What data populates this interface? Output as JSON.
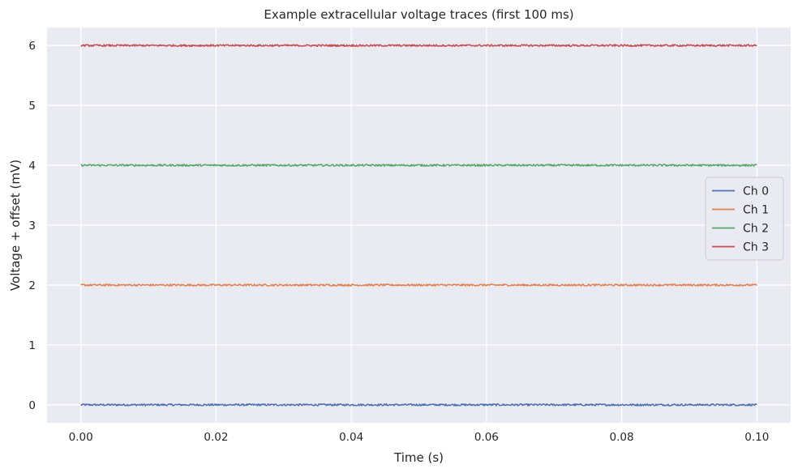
{
  "chart_data": {
    "type": "line",
    "title": "Example extracellular voltage traces (first 100 ms)",
    "xlabel": "Time (s)",
    "ylabel": "Voltage + offset (mV)",
    "xlim": [
      -0.005,
      0.105
    ],
    "ylim": [
      -0.3,
      6.3
    ],
    "xticks": [
      0.0,
      0.02,
      0.04,
      0.06,
      0.08,
      0.1
    ],
    "xtick_labels": [
      "0.00",
      "0.02",
      "0.04",
      "0.06",
      "0.08",
      "0.10"
    ],
    "yticks": [
      0,
      1,
      2,
      3,
      4,
      5,
      6
    ],
    "ytick_labels": [
      "0",
      "1",
      "2",
      "3",
      "4",
      "5",
      "6"
    ],
    "grid": true,
    "legend": "center-right",
    "x_range": [
      0.0,
      0.1
    ],
    "series": [
      {
        "name": "Ch 0",
        "offset": 0,
        "noise_amplitude": 0.015,
        "color": "#4c72b0"
      },
      {
        "name": "Ch 1",
        "offset": 2,
        "noise_amplitude": 0.015,
        "color": "#dd8452"
      },
      {
        "name": "Ch 2",
        "offset": 4,
        "noise_amplitude": 0.015,
        "color": "#55a868"
      },
      {
        "name": "Ch 3",
        "offset": 6,
        "noise_amplitude": 0.015,
        "color": "#c44e52"
      }
    ]
  },
  "colors": {
    "plot_background": "#eaeaf2",
    "grid": "#ffffff"
  }
}
